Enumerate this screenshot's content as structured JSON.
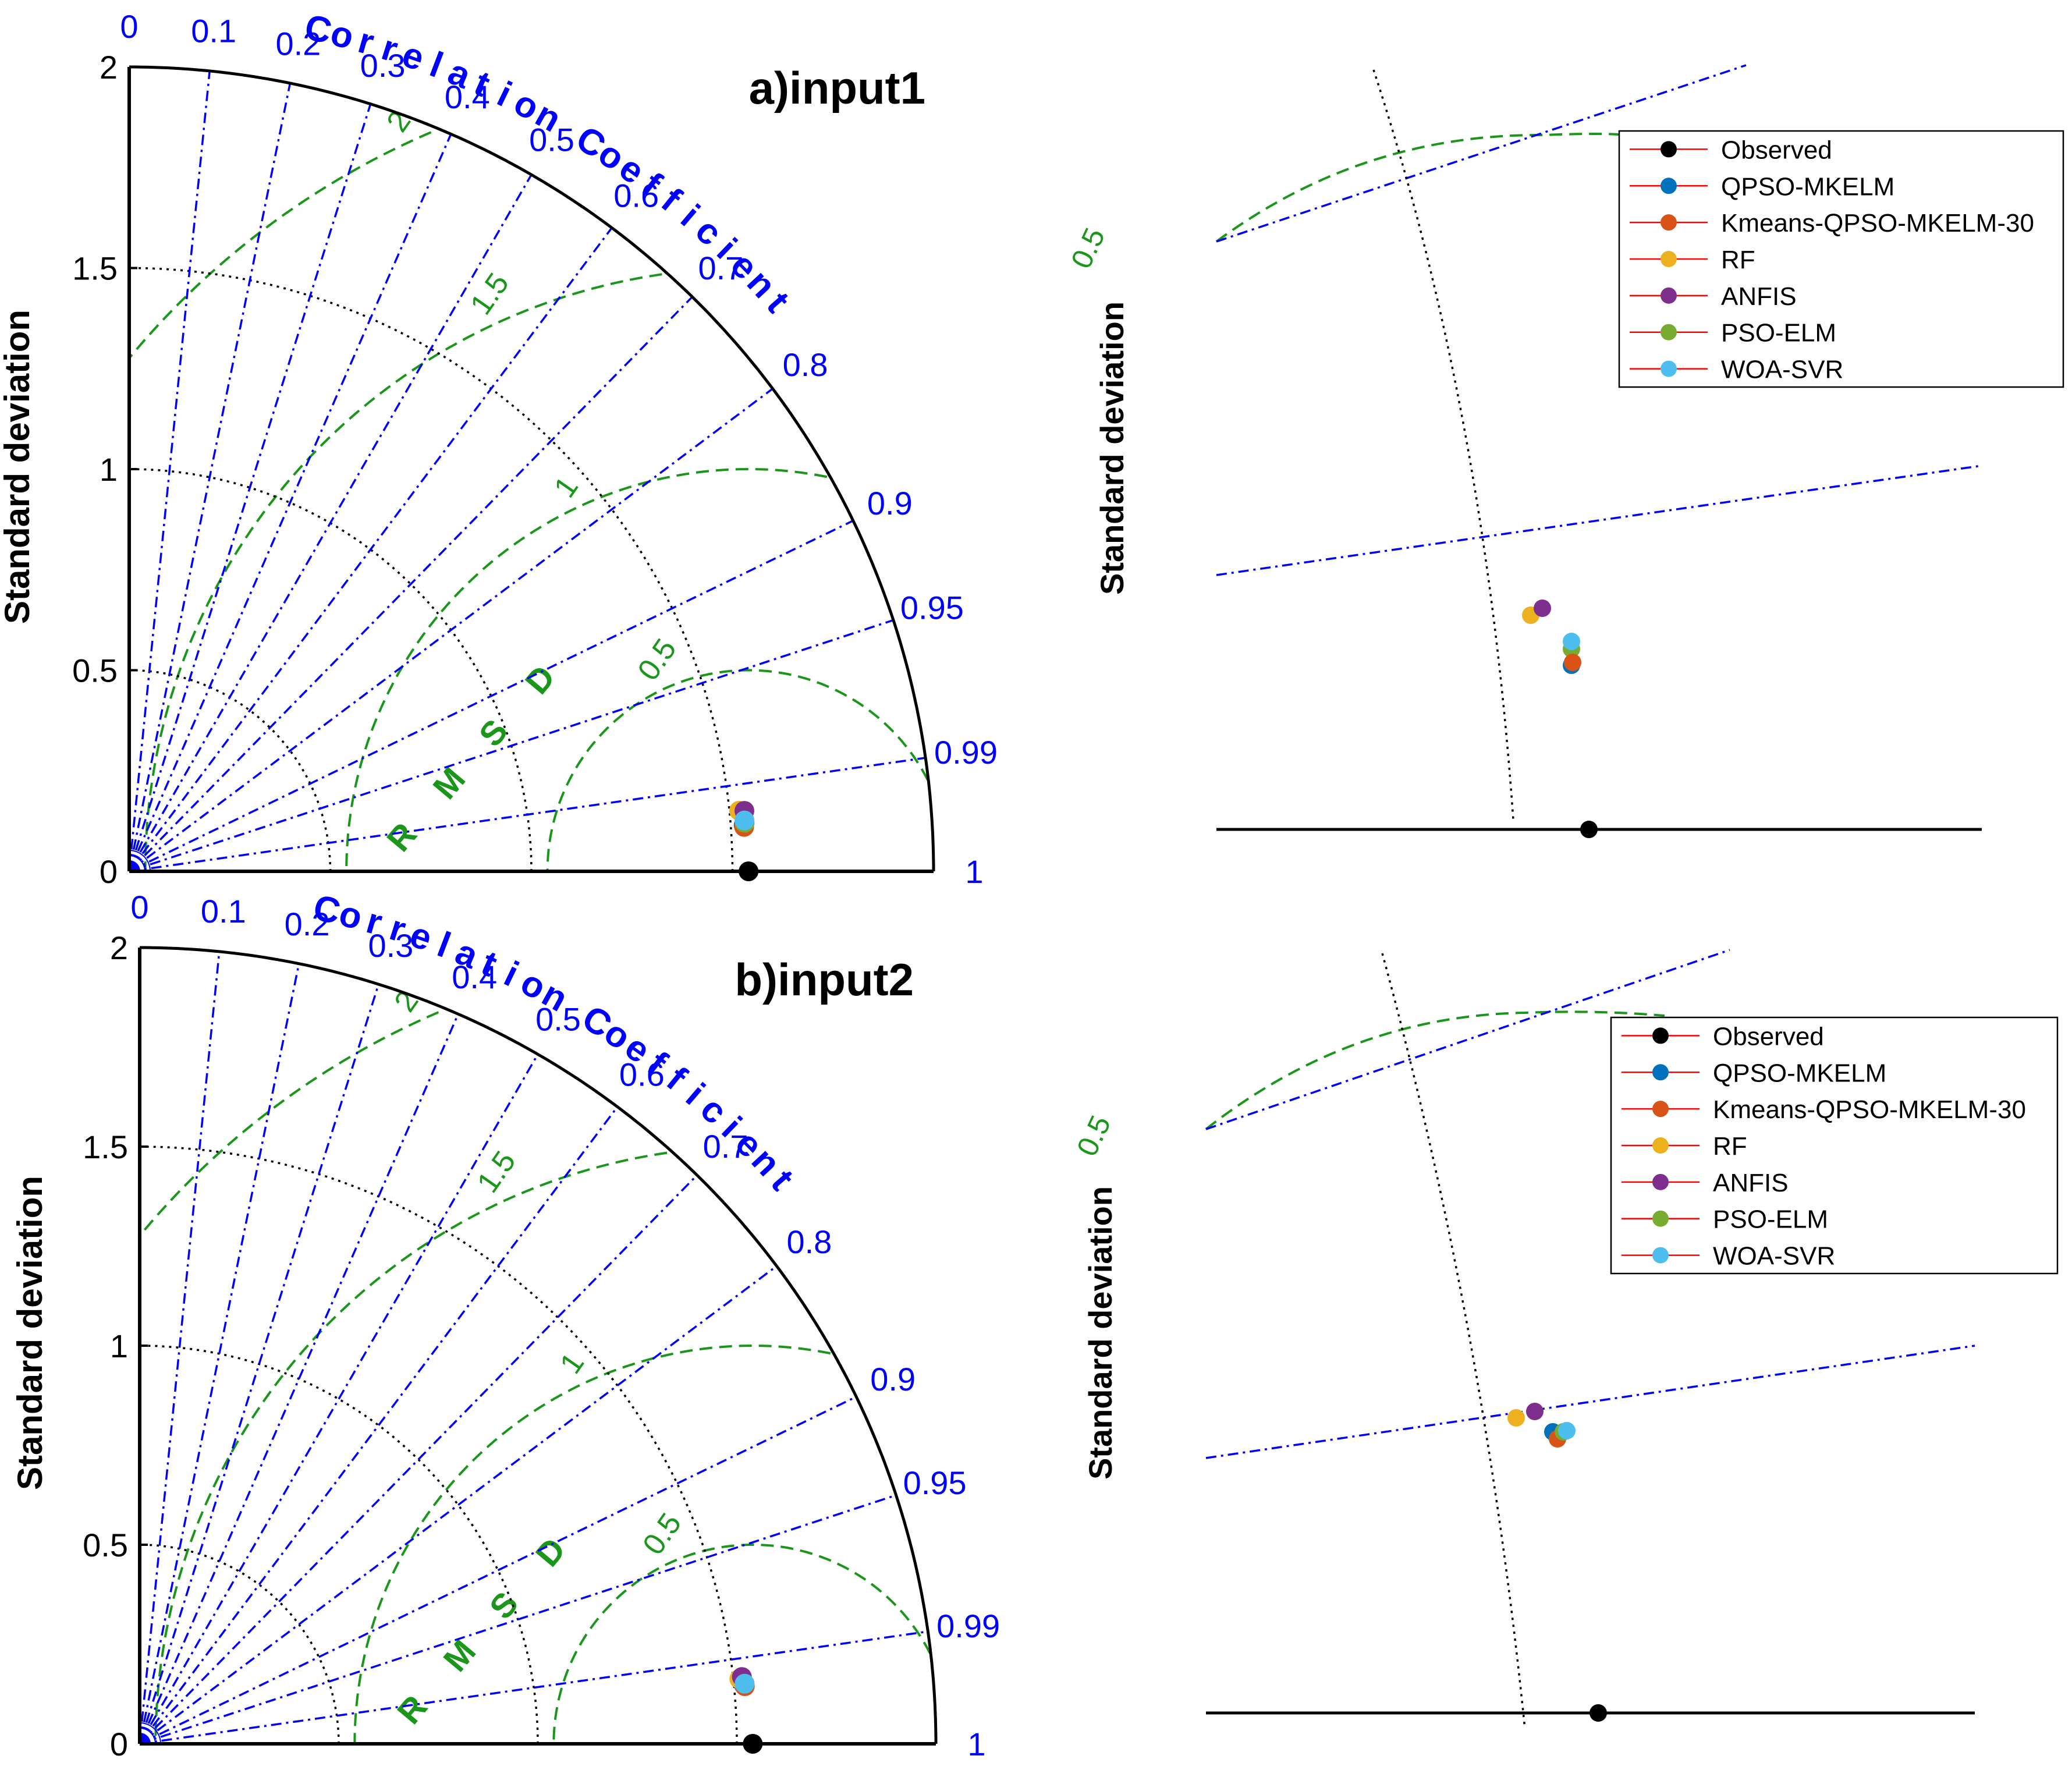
{
  "chart_data": [
    {
      "type": "taylor",
      "title": "a)input1",
      "ylabel": "Standard deviation",
      "arc_label": "Correlation Coefficient",
      "rmsd_label": "RMSD",
      "std_range": [
        0,
        2
      ],
      "std_ticks": [
        "0",
        "0.5",
        "1",
        "1.5",
        "2"
      ],
      "std_values": [
        0,
        0.5,
        1,
        1.5,
        2
      ],
      "corr_ticks": [
        "0",
        "0.1",
        "0.2",
        "0.3",
        "0.4",
        "0.5",
        "0.6",
        "0.7",
        "0.8",
        "0.9",
        "0.95",
        "0.99",
        "1"
      ],
      "corr_values": [
        0,
        0.1,
        0.2,
        0.3,
        0.4,
        0.5,
        0.6,
        0.7,
        0.8,
        0.9,
        0.95,
        0.99,
        1
      ],
      "rmsd_ticks": [
        "0.5",
        "1",
        "1.5",
        "2"
      ],
      "rmsd_values": [
        0.5,
        1,
        1.5,
        2
      ],
      "observed": {
        "name": "Observed",
        "std": 1.54,
        "corr": 1.0
      },
      "series": [
        {
          "name": "QPSO-MKELM",
          "std": 1.532,
          "corr": 0.9972
        },
        {
          "name": "Kmeans-QPSO-MKELM-30",
          "std": 1.533,
          "corr": 0.9974
        },
        {
          "name": "RF",
          "std": 1.524,
          "corr": 0.9951
        },
        {
          "name": "ANFIS",
          "std": 1.537,
          "corr": 0.9952
        },
        {
          "name": "PSO-ELM",
          "std": 1.535,
          "corr": 0.9969
        },
        {
          "name": "WOA-SVR",
          "std": 1.535,
          "corr": 0.9966
        }
      ]
    },
    {
      "type": "taylor",
      "title": "b)input2",
      "ylabel": "Standard deviation",
      "arc_label": "Correlation Coefficient",
      "rmsd_label": "RMSD",
      "std_range": [
        0,
        2
      ],
      "std_ticks": [
        "0",
        "0.5",
        "1",
        "1.5",
        "2"
      ],
      "std_values": [
        0,
        0.5,
        1,
        1.5,
        2
      ],
      "corr_ticks": [
        "0",
        "0.1",
        "0.2",
        "0.3",
        "0.4",
        "0.5",
        "0.6",
        "0.7",
        "0.8",
        "0.9",
        "0.95",
        "0.99",
        "1"
      ],
      "corr_values": [
        0,
        0.1,
        0.2,
        0.3,
        0.4,
        0.5,
        0.6,
        0.7,
        0.8,
        0.9,
        0.95,
        0.99,
        1
      ],
      "rmsd_ticks": [
        "0.5",
        "1",
        "1.5",
        "2"
      ],
      "rmsd_values": [
        0.5,
        1,
        1.5,
        2
      ],
      "observed": {
        "name": "Observed",
        "std": 1.54,
        "corr": 1.0
      },
      "series": [
        {
          "name": "QPSO-MKELM",
          "std": 1.525,
          "corr": 0.9953
        },
        {
          "name": "Kmeans-QPSO-MKELM-30",
          "std": 1.527,
          "corr": 0.9955
        },
        {
          "name": "RF",
          "std": 1.515,
          "corr": 0.9942
        },
        {
          "name": "ANFIS",
          "std": 1.522,
          "corr": 0.9939
        },
        {
          "name": "PSO-ELM",
          "std": 1.527,
          "corr": 0.9951
        },
        {
          "name": "WOA-SVR",
          "std": 1.527,
          "corr": 0.9951
        }
      ]
    }
  ],
  "zoom_panels": [
    {
      "ylabel": "Standard deviation",
      "rmsd_label": "0.5",
      "legend": [
        "Observed",
        "QPSO-MKELM",
        "Kmeans-QPSO-MKELM-30",
        "RF",
        "ANFIS",
        "PSO-ELM",
        "WOA-SVR"
      ]
    },
    {
      "ylabel": "Standard deviation",
      "rmsd_label": "0.5",
      "legend": [
        "Observed",
        "QPSO-MKELM",
        "Kmeans-QPSO-MKELM-30",
        "RF",
        "ANFIS",
        "PSO-ELM",
        "WOA-SVR"
      ]
    }
  ],
  "colors": {
    "Observed": "#000000",
    "QPSO-MKELM": "#0072BD",
    "Kmeans-QPSO-MKELM-30": "#D95319",
    "RF": "#EDB120",
    "ANFIS": "#7E2F8E",
    "PSO-ELM": "#77AC30",
    "WOA-SVR": "#4DBEEE",
    "corr_lines": "#0000FF",
    "rmsd": "#1A961A",
    "std_arcs": "#000000",
    "legend_line": "#FF0000"
  }
}
